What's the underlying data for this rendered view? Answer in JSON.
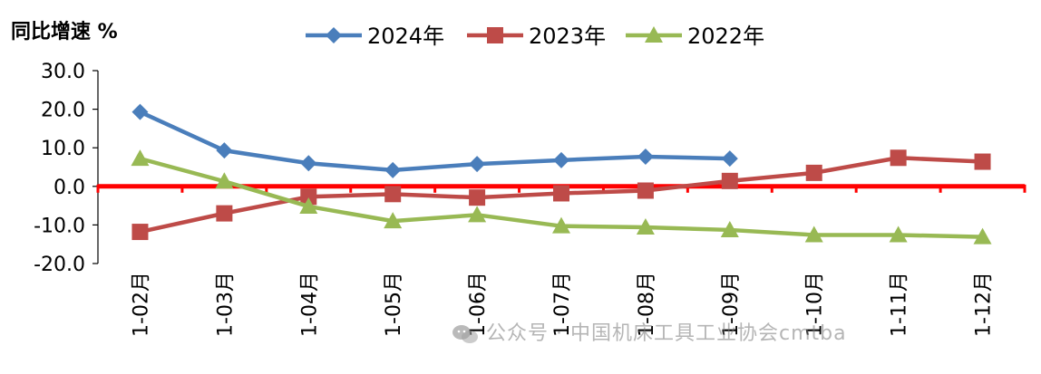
{
  "chart_data": {
    "type": "line",
    "ylabel": "同比增速 %",
    "categories": [
      "1-02月",
      "1-03月",
      "1-04月",
      "1-05月",
      "1-06月",
      "1-07月",
      "1-08月",
      "1-09月",
      "1-10月",
      "1-11月",
      "1-12月"
    ],
    "ylim": [
      -20,
      30
    ],
    "yticks": [
      "30.0",
      "20.0",
      "10.0",
      "0.0",
      "-10.0",
      "-20.0"
    ],
    "legend_position": "top",
    "series": [
      {
        "name": "2024年",
        "color": "#4a7ebb",
        "marker": "diamond",
        "values": [
          19.3,
          9.3,
          6.0,
          4.2,
          5.8,
          6.8,
          7.7,
          7.2,
          null,
          null,
          null
        ]
      },
      {
        "name": "2023年",
        "color": "#be4b48",
        "marker": "square",
        "values": [
          -11.8,
          -7.0,
          -2.7,
          -2.0,
          -2.9,
          -1.8,
          -1.1,
          1.4,
          3.5,
          7.4,
          6.4
        ]
      },
      {
        "name": "2022年",
        "color": "#98b954",
        "marker": "triangle",
        "values": [
          7.2,
          1.3,
          -5.2,
          -9.0,
          -7.4,
          -10.3,
          -10.6,
          -11.3,
          -12.6,
          -12.6,
          -13.1
        ]
      }
    ],
    "zero_line_color": "#ff0000",
    "grid": false
  },
  "watermark": {
    "text": "公众号 · 中国机床工具工业协会cmtba",
    "icon": "wechat-icon"
  }
}
